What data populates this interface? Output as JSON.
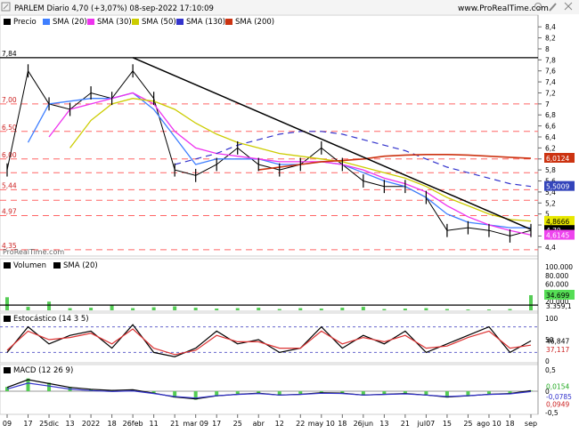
{
  "header": {
    "title": "PARLEM Diario 4,70 (+3,07%) 08-sep-2022 17:10:09",
    "url": "www.ProRealTime.com",
    "watermark": "ProRealTime.com"
  },
  "toolbar_icons": [
    "resize-icon",
    "zoom-icon",
    "wrench-icon",
    "close-icon"
  ],
  "colors": {
    "price": "#000000",
    "sma20": "#3f7fff",
    "sma30": "#ee33ee",
    "sma50": "#cccc00",
    "sma130": "#3333cc",
    "sma200": "#cc3311",
    "support_line": "#ff6666",
    "k_line": "#000000",
    "d_line": "#dd3333",
    "histogram": "#55cc55",
    "badge_sma20": "#5a9aff",
    "badge_sma30": "#ee44ee",
    "badge_sma50": "#e8e800",
    "badge_sma130": "#3344bb",
    "badge_sma200": "#cc3311"
  },
  "chart_data": [
    {
      "type": "line",
      "panel": "price",
      "legend": [
        "Precio",
        "SMA (20)",
        "SMA (30)",
        "SMA (50)",
        "SMA (130)",
        "SMA (200)"
      ],
      "x": [
        "09",
        "17",
        "25dic",
        "13",
        "2022",
        "18",
        "26feb",
        "11",
        "21",
        "mar 09",
        "17",
        "25",
        "abr",
        "12",
        "22",
        "may 10",
        "18",
        "26jun",
        "13",
        "21",
        "jul07",
        "15",
        "25",
        "ago 10",
        "18",
        "sep"
      ],
      "y_ticks": [
        "8,4",
        "8,2",
        "8",
        "7,8",
        "7,6",
        "7,4",
        "7,2",
        "7",
        "6,8",
        "6,6",
        "6,4",
        "6,2",
        "6",
        "5,8",
        "5,6",
        "5,4",
        "5,2",
        "5",
        "4,8",
        "4,6",
        "4,4"
      ],
      "ylim": [
        4.3,
        8.5
      ],
      "left_labels": [
        "7,84",
        "7,00",
        "6,50",
        "6,00",
        "5,44",
        "4,97",
        "4,35"
      ],
      "horizontal_levels": [
        7.84,
        7.0,
        6.5,
        6.0,
        5.75,
        5.44,
        5.25,
        4.97,
        4.35
      ],
      "badges": {
        "sma200": "6,0124",
        "sma130": "5,5009",
        "sma50": "4,8666",
        "price": "4,70",
        "sma20": "4,7485",
        "sma30": "4,6145"
      },
      "series": [
        {
          "name": "Precio",
          "values": [
            5.8,
            7.6,
            7.0,
            6.9,
            7.2,
            7.1,
            7.6,
            7.1,
            5.8,
            5.7,
            5.9,
            6.2,
            5.9,
            5.8,
            5.9,
            6.2,
            5.9,
            5.6,
            5.5,
            5.5,
            5.3,
            4.7,
            4.75,
            4.7,
            4.6,
            4.7
          ]
        },
        {
          "name": "SMA (20)",
          "values": [
            null,
            6.3,
            7.0,
            7.05,
            7.1,
            7.1,
            7.2,
            6.9,
            6.4,
            5.9,
            6.0,
            6.0,
            6.0,
            5.9,
            5.9,
            5.95,
            5.9,
            5.75,
            5.6,
            5.5,
            5.3,
            5.0,
            4.85,
            4.8,
            4.75,
            4.75
          ]
        },
        {
          "name": "SMA (30)",
          "values": [
            null,
            null,
            6.4,
            6.9,
            7.0,
            7.1,
            7.2,
            7.0,
            6.5,
            6.2,
            6.1,
            6.05,
            6.0,
            5.95,
            5.95,
            5.95,
            5.9,
            5.8,
            5.65,
            5.55,
            5.4,
            5.15,
            4.95,
            4.8,
            4.7,
            4.62
          ]
        },
        {
          "name": "SMA (50)",
          "values": [
            null,
            null,
            null,
            6.2,
            6.7,
            7.0,
            7.1,
            7.05,
            6.9,
            6.65,
            6.45,
            6.3,
            6.2,
            6.1,
            6.05,
            6.0,
            5.95,
            5.85,
            5.75,
            5.65,
            5.5,
            5.3,
            5.15,
            5.0,
            4.9,
            4.87
          ]
        },
        {
          "name": "SMA (130)",
          "values": [
            null,
            null,
            null,
            null,
            null,
            null,
            null,
            null,
            5.9,
            6.0,
            6.1,
            6.25,
            6.35,
            6.45,
            6.5,
            6.5,
            6.45,
            6.35,
            6.25,
            6.15,
            6.0,
            5.85,
            5.75,
            5.65,
            5.55,
            5.5
          ]
        },
        {
          "name": "SMA (200)",
          "values": [
            null,
            null,
            null,
            null,
            null,
            null,
            null,
            null,
            null,
            null,
            null,
            null,
            5.8,
            5.85,
            5.9,
            5.95,
            5.97,
            6.0,
            6.05,
            6.07,
            6.08,
            6.08,
            6.07,
            6.05,
            6.03,
            6.01
          ]
        }
      ]
    },
    {
      "type": "bar",
      "panel": "volume",
      "legend": [
        "Volumen",
        "SMA (20)"
      ],
      "y_ticks": [
        "100.000",
        "80.000",
        "60.000",
        "20.000"
      ],
      "badges": {
        "vol": "34.699",
        "sma": "3.359,1"
      },
      "ylim": [
        0,
        100000
      ],
      "values": [
        30000,
        8000,
        20000,
        5000,
        6000,
        12000,
        5000,
        7000,
        9000,
        6000,
        4000,
        5000,
        6000,
        3000,
        5000,
        4000,
        6000,
        8000,
        3000,
        4000,
        5000,
        3000,
        2000,
        2000,
        3000,
        34699
      ]
    },
    {
      "type": "line",
      "panel": "stochastic",
      "legend": [
        "Estocástico (14 3 5)"
      ],
      "y_ticks": [
        "100",
        "50",
        "0"
      ],
      "badges": {
        "k": "46,847",
        "d": "37,117"
      },
      "ylim": [
        0,
        100
      ],
      "series": [
        {
          "name": "K",
          "values": [
            20,
            80,
            40,
            60,
            70,
            30,
            85,
            20,
            10,
            30,
            70,
            40,
            50,
            20,
            30,
            80,
            30,
            60,
            40,
            70,
            20,
            40,
            60,
            80,
            20,
            47
          ]
        },
        {
          "name": "D",
          "values": [
            25,
            70,
            50,
            55,
            65,
            40,
            75,
            30,
            15,
            25,
            60,
            45,
            45,
            30,
            30,
            70,
            40,
            55,
            45,
            60,
            30,
            35,
            55,
            70,
            30,
            37
          ]
        }
      ]
    },
    {
      "type": "bar",
      "panel": "macd",
      "legend": [
        "MACD (12 26 9)"
      ],
      "y_ticks": [
        "0,5",
        "0",
        "-0,5"
      ],
      "badges": {
        "macd": "0,0154",
        "signal": "-0,0785",
        "hist": "0,0949"
      },
      "ylim": [
        -0.5,
        0.5
      ],
      "values": [
        0.1,
        0.3,
        0.2,
        0.1,
        0.05,
        0.02,
        0.04,
        -0.05,
        -0.15,
        -0.2,
        -0.12,
        -0.08,
        -0.05,
        -0.1,
        -0.08,
        -0.04,
        -0.05,
        -0.1,
        -0.08,
        -0.06,
        -0.1,
        -0.15,
        -0.12,
        -0.08,
        -0.06,
        0.0154
      ]
    }
  ]
}
